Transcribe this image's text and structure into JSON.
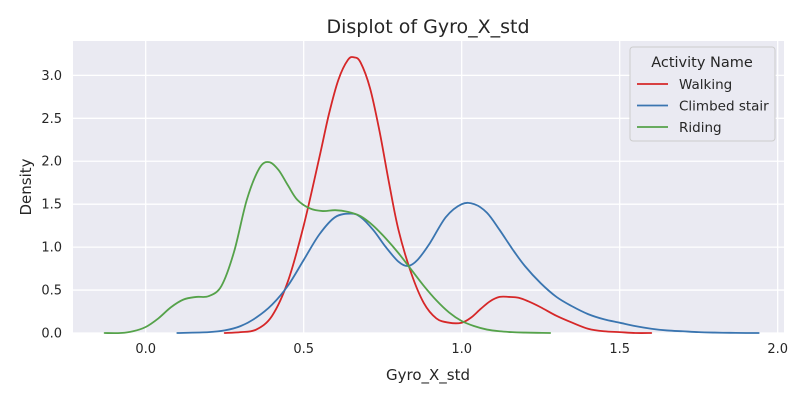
{
  "chart_data": {
    "type": "line",
    "title": "Displot of Gyro_X_std",
    "xlabel": "Gyro_X_std",
    "ylabel": "Density",
    "xlim": [
      -0.23,
      2.02
    ],
    "ylim": [
      0,
      3.4
    ],
    "xticks": [
      0.0,
      0.5,
      1.0,
      1.5,
      2.0
    ],
    "xtick_labels": [
      "0.0",
      "0.5",
      "1.0",
      "1.5",
      "2.0"
    ],
    "yticks": [
      0.0,
      0.5,
      1.0,
      1.5,
      2.0,
      2.5,
      3.0
    ],
    "ytick_labels": [
      "0.0",
      "0.5",
      "1.0",
      "1.5",
      "2.0",
      "2.5",
      "3.0"
    ],
    "grid": true,
    "legend": {
      "title": "Activity Name",
      "position": "top-right"
    },
    "series": [
      {
        "name": "Walking",
        "color": "#d62728",
        "x": [
          0.25,
          0.3,
          0.35,
          0.4,
          0.45,
          0.5,
          0.55,
          0.58,
          0.61,
          0.64,
          0.66,
          0.68,
          0.71,
          0.74,
          0.77,
          0.8,
          0.84,
          0.88,
          0.92,
          0.96,
          1.0,
          1.03,
          1.06,
          1.09,
          1.12,
          1.15,
          1.18,
          1.21,
          1.25,
          1.3,
          1.35,
          1.4,
          1.45,
          1.5,
          1.55,
          1.6
        ],
        "y": [
          0.0,
          0.01,
          0.04,
          0.2,
          0.6,
          1.25,
          2.05,
          2.55,
          2.95,
          3.18,
          3.21,
          3.15,
          2.85,
          2.35,
          1.75,
          1.2,
          0.7,
          0.35,
          0.17,
          0.12,
          0.12,
          0.18,
          0.28,
          0.37,
          0.42,
          0.42,
          0.41,
          0.37,
          0.3,
          0.2,
          0.12,
          0.05,
          0.02,
          0.01,
          0.0,
          0.0
        ]
      },
      {
        "name": "Climbed stair",
        "color": "#3a75b0",
        "x": [
          0.1,
          0.2,
          0.25,
          0.3,
          0.35,
          0.4,
          0.45,
          0.5,
          0.55,
          0.6,
          0.65,
          0.68,
          0.72,
          0.76,
          0.8,
          0.83,
          0.86,
          0.9,
          0.95,
          1.0,
          1.04,
          1.08,
          1.12,
          1.16,
          1.2,
          1.25,
          1.3,
          1.35,
          1.4,
          1.45,
          1.5,
          1.55,
          1.6,
          1.65,
          1.7,
          1.75,
          1.8,
          1.85,
          1.9,
          1.94
        ],
        "y": [
          0.0,
          0.01,
          0.03,
          0.08,
          0.18,
          0.33,
          0.55,
          0.85,
          1.15,
          1.35,
          1.39,
          1.35,
          1.2,
          1.0,
          0.83,
          0.78,
          0.85,
          1.05,
          1.35,
          1.5,
          1.5,
          1.4,
          1.2,
          0.98,
          0.78,
          0.58,
          0.42,
          0.31,
          0.22,
          0.16,
          0.12,
          0.08,
          0.05,
          0.03,
          0.02,
          0.01,
          0.005,
          0.002,
          0.0,
          0.0
        ]
      },
      {
        "name": "Riding",
        "color": "#55a24a",
        "x": [
          -0.13,
          -0.08,
          -0.04,
          0.0,
          0.04,
          0.08,
          0.12,
          0.16,
          0.2,
          0.24,
          0.28,
          0.32,
          0.36,
          0.39,
          0.42,
          0.45,
          0.48,
          0.52,
          0.56,
          0.6,
          0.64,
          0.68,
          0.72,
          0.76,
          0.8,
          0.84,
          0.88,
          0.92,
          0.96,
          1.0,
          1.04,
          1.08,
          1.12,
          1.16,
          1.2,
          1.24,
          1.28
        ],
        "y": [
          0.0,
          0.0,
          0.02,
          0.07,
          0.17,
          0.3,
          0.39,
          0.42,
          0.43,
          0.55,
          0.95,
          1.55,
          1.92,
          1.99,
          1.9,
          1.72,
          1.55,
          1.45,
          1.42,
          1.43,
          1.41,
          1.36,
          1.25,
          1.1,
          0.93,
          0.74,
          0.55,
          0.38,
          0.24,
          0.14,
          0.08,
          0.04,
          0.02,
          0.01,
          0.005,
          0.002,
          0.0
        ]
      }
    ]
  }
}
